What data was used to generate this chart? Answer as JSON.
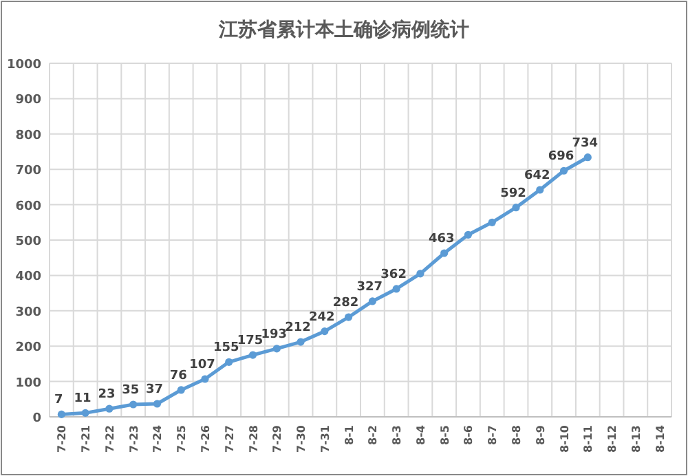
{
  "chart_data": {
    "type": "line",
    "title": "江苏省累计本土确诊病例统计",
    "categories": [
      "7-20",
      "7-21",
      "7-22",
      "7-23",
      "7-24",
      "7-25",
      "7-26",
      "7-27",
      "7-28",
      "7-29",
      "7-30",
      "7-31",
      "8-1",
      "8-2",
      "8-3",
      "8-4",
      "8-5",
      "8-6",
      "8-7",
      "8-8",
      "8-9",
      "8-10",
      "8-11",
      "8-12",
      "8-13",
      "8-14"
    ],
    "values": [
      7,
      11,
      23,
      35,
      37,
      76,
      107,
      155,
      175,
      193,
      212,
      242,
      282,
      327,
      362,
      405,
      463,
      515,
      550,
      592,
      642,
      696,
      734,
      null,
      null,
      null
    ],
    "value_labels": [
      "7",
      "11",
      "23",
      "35",
      "37",
      "76",
      "107",
      "155",
      "175",
      "193",
      "212",
      "242",
      "282",
      "327",
      "362",
      null,
      "463",
      null,
      null,
      "592",
      "642",
      "696",
      "734",
      null,
      null,
      null
    ],
    "color": "#5b9bd5",
    "marker": "circle",
    "ylim": [
      0,
      1000
    ],
    "yticks": [
      0,
      100,
      200,
      300,
      400,
      500,
      600,
      700,
      800,
      900,
      1000
    ],
    "grid": true
  }
}
